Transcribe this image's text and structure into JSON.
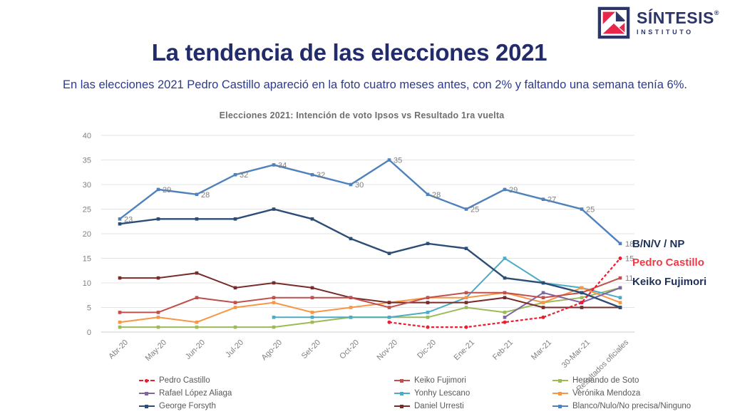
{
  "logo": {
    "brand": "SÍNTESIS",
    "registered": "®",
    "subbrand": "INSTITUTO"
  },
  "header": {
    "title": "La tendencia de las elecciones 2021",
    "subtitle": "En las elecciones 2021 Pedro Castillo apareció en la foto cuatro meses antes, con 2% y faltando una semana tenía 6%."
  },
  "chart_data": {
    "type": "line",
    "title": "Elecciones 2021: Intención de voto Ipsos vs Resultado 1ra vuelta",
    "x_labels": [
      "Abr-20",
      "May-20",
      "Jun-20",
      "Jul-20",
      "Ago-20",
      "Set-20",
      "Oct-20",
      "Nov-20",
      "Dic-20",
      "Ene-21",
      "Feb-21",
      "Mar-21",
      "30-Mar-21",
      "Resultados oficiales"
    ],
    "ylim": [
      0,
      40
    ],
    "yticks": [
      0,
      5,
      10,
      15,
      20,
      25,
      30,
      35,
      40
    ],
    "grid": "horizontal",
    "series": [
      {
        "name": "Pedro Castillo",
        "color": "#EE1C2E",
        "dashed": true,
        "values": [
          null,
          null,
          null,
          null,
          null,
          null,
          null,
          2,
          1,
          1,
          2,
          3,
          6,
          15
        ],
        "end_label": "15"
      },
      {
        "name": "Keiko Fujimori",
        "color": "#C0504D",
        "values": [
          4,
          4,
          7,
          6,
          7,
          7,
          7,
          5,
          7,
          8,
          8,
          7,
          8,
          11
        ],
        "end_label": "11"
      },
      {
        "name": "Hernando de Soto",
        "color": "#9BBB59",
        "values": [
          1,
          1,
          1,
          1,
          1,
          2,
          3,
          3,
          3,
          5,
          4,
          6,
          7,
          9
        ]
      },
      {
        "name": "Rafael López Aliaga",
        "color": "#8064A2",
        "values": [
          null,
          null,
          null,
          null,
          null,
          null,
          null,
          null,
          null,
          null,
          3,
          8,
          6,
          9
        ]
      },
      {
        "name": "Yonhy Lescano",
        "color": "#4BACC6",
        "values": [
          null,
          null,
          null,
          null,
          3,
          3,
          3,
          3,
          4,
          7,
          15,
          10,
          9,
          7
        ]
      },
      {
        "name": "Verónika Mendoza",
        "color": "#F79646",
        "values": [
          2,
          3,
          2,
          5,
          6,
          4,
          5,
          6,
          7,
          7,
          8,
          6,
          9,
          6
        ]
      },
      {
        "name": "George Forsyth",
        "color": "#2C4D75",
        "values": [
          22,
          23,
          23,
          23,
          25,
          23,
          19,
          16,
          18,
          17,
          11,
          10,
          8,
          5
        ]
      },
      {
        "name": "Daniel Urresti",
        "color": "#772C2A",
        "values": [
          11,
          11,
          12,
          9,
          10,
          9,
          7,
          6,
          6,
          6,
          7,
          5,
          5,
          5
        ]
      },
      {
        "name": "Blanco/Nulo/No precisa/Ninguno",
        "color": "#4F81BD",
        "values": [
          23,
          29,
          28,
          32,
          34,
          32,
          30,
          35,
          28,
          25,
          29,
          27,
          25,
          18
        ],
        "data_labels": true,
        "end_label": "18"
      }
    ],
    "annotations": [
      {
        "text": "B/N/V / NP",
        "color": "#1F3057"
      },
      {
        "text": "Pedro Castillo",
        "color": "#ED3B47"
      },
      {
        "text": "Keiko Fujimori",
        "color": "#1F3057"
      }
    ],
    "legend_position": "bottom"
  },
  "legend": {
    "rows": [
      [
        {
          "label": "Pedro Castillo",
          "color": "#EE1C2E",
          "dashed": true
        },
        {
          "label": "Keiko Fujimori",
          "color": "#C0504D",
          "dashed": false
        },
        {
          "label": "Hernando de Soto",
          "color": "#9BBB59",
          "dashed": false
        }
      ],
      [
        {
          "label": "Rafael López Aliaga",
          "color": "#8064A2",
          "dashed": false
        },
        {
          "label": "Yonhy Lescano",
          "color": "#4BACC6",
          "dashed": false
        },
        {
          "label": "Verónika Mendoza",
          "color": "#F79646",
          "dashed": false
        }
      ],
      [
        {
          "label": "George Forsyth",
          "color": "#2C4D75",
          "dashed": false
        },
        {
          "label": "Daniel Urresti",
          "color": "#772C2A",
          "dashed": false
        },
        {
          "label": "Blanco/Nulo/No precisa/Ninguno",
          "color": "#4F81BD",
          "dashed": false
        }
      ]
    ]
  }
}
